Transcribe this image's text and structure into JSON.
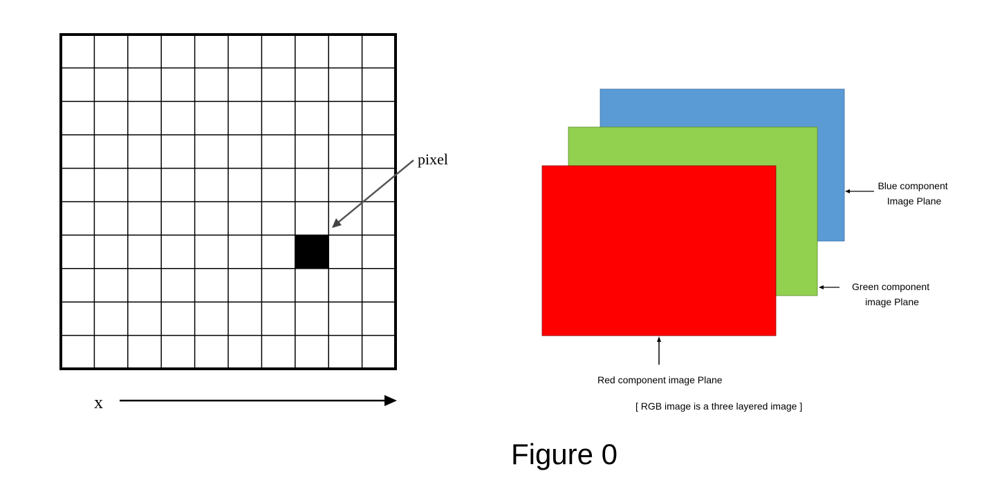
{
  "grid": {
    "rows": 10,
    "cols": 10,
    "highlighted_cell": {
      "row": 7,
      "col": 8
    },
    "pixel_label": "pixel",
    "axis_label": "x",
    "line_color": "#000000",
    "pixel_color": "#000000"
  },
  "rgb": {
    "planes": [
      {
        "key": "blue",
        "label_lines": [
          "Blue component",
          "Image  Plane"
        ],
        "color": "#5b9bd5"
      },
      {
        "key": "green",
        "label_lines": [
          "Green component",
          "image Plane"
        ],
        "color": "#92d050"
      },
      {
        "key": "red",
        "label_lines": [
          "Red component image Plane"
        ],
        "color": "#ff0000"
      }
    ],
    "caption": "[ RGB image is a three layered image ]"
  },
  "figure_caption": "Figure 0"
}
